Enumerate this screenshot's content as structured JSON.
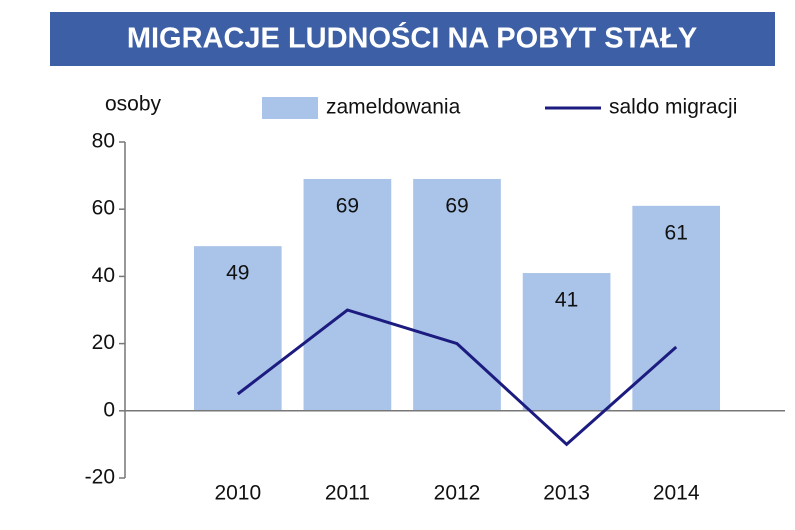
{
  "chart_data": {
    "type": "bar",
    "title": "MIGRACJE LUDNOŚCI NA POBYT STAŁY",
    "y_label": "osoby",
    "categories": [
      "2010",
      "2011",
      "2012",
      "2013",
      "2014"
    ],
    "series": [
      {
        "name": "zameldowania",
        "type": "bar",
        "color": "#a9c4e8",
        "values": [
          49,
          69,
          69,
          41,
          61
        ]
      },
      {
        "name": "saldo migracji",
        "type": "line",
        "color": "#1c1c80",
        "values": [
          5,
          30,
          20,
          -10,
          19
        ]
      }
    ],
    "ylim": [
      -20,
      80
    ],
    "yticks": [
      -20,
      0,
      20,
      40,
      60,
      80
    ],
    "grid": false,
    "legend": "top"
  }
}
